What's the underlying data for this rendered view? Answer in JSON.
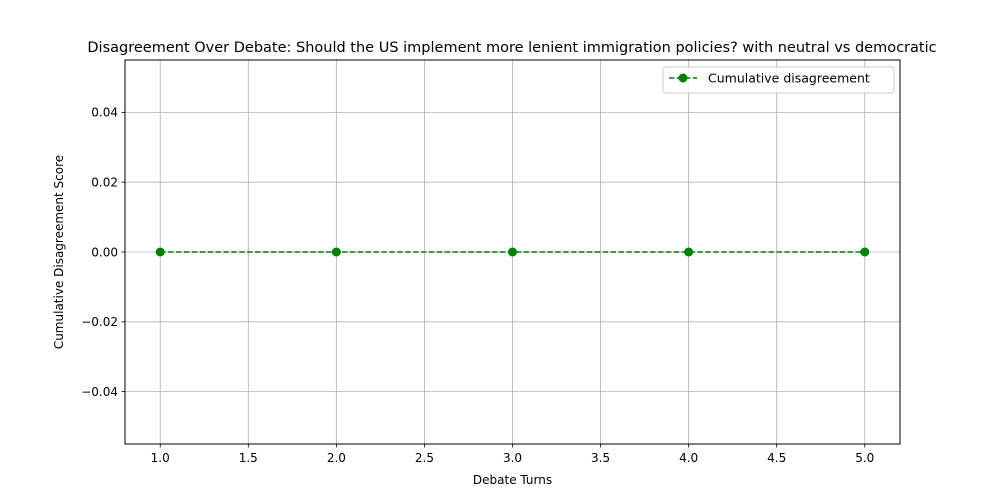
{
  "chart_data": {
    "type": "line",
    "title": "Disagreement Over Debate: Should the US implement more lenient immigration policies? with neutral vs democratic",
    "xlabel": "Debate Turns",
    "ylabel": "Cumulative Disagreement Score",
    "xlim": [
      0.8,
      5.2
    ],
    "ylim": [
      -0.055,
      0.055
    ],
    "x_ticks": [
      1.0,
      1.5,
      2.0,
      2.5,
      3.0,
      3.5,
      4.0,
      4.5,
      5.0
    ],
    "x_tick_labels": [
      "1.0",
      "1.5",
      "2.0",
      "2.5",
      "3.0",
      "3.5",
      "4.0",
      "4.5",
      "5.0"
    ],
    "y_ticks": [
      -0.04,
      -0.02,
      0.0,
      0.02,
      0.04
    ],
    "y_tick_labels": [
      "−0.04",
      "−0.02",
      "0.00",
      "0.02",
      "0.04"
    ],
    "grid": true,
    "legend_position": "top-right",
    "series": [
      {
        "name": "Cumulative disagreement",
        "color": "#008000",
        "line_style": "dashed",
        "marker": "circle",
        "x": [
          1,
          2,
          3,
          4,
          5
        ],
        "y": [
          0,
          0,
          0,
          0,
          0
        ]
      }
    ]
  }
}
